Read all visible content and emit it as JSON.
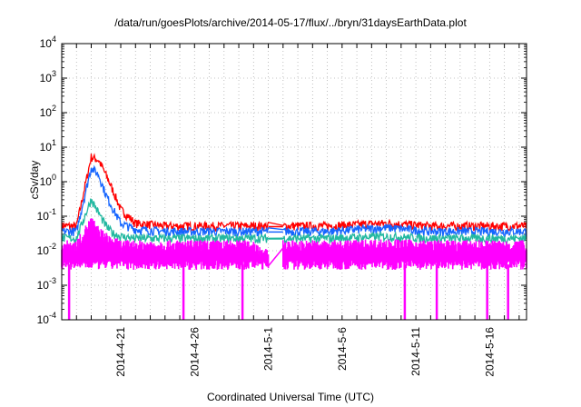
{
  "chart_data": {
    "type": "line",
    "title": "/data/run/goesPlots/archive/2014-05-17/flux/../bryn/31daysEarthData.plot",
    "xlabel": "Coordinated Universal Time (UTC)",
    "ylabel": "cSv/day",
    "yscale": "log",
    "ylim": [
      0.0001,
      10000
    ],
    "yticks": [
      {
        "value": 0.0001,
        "base": "10",
        "exp": "-4"
      },
      {
        "value": 0.001,
        "base": "10",
        "exp": "-3"
      },
      {
        "value": 0.01,
        "base": "10",
        "exp": "-2"
      },
      {
        "value": 0.1,
        "base": "10",
        "exp": "-1"
      },
      {
        "value": 1,
        "base": "10",
        "exp": "0"
      },
      {
        "value": 10,
        "base": "10",
        "exp": "1"
      },
      {
        "value": 100,
        "base": "10",
        "exp": "2"
      },
      {
        "value": 1000,
        "base": "10",
        "exp": "3"
      },
      {
        "value": 10000,
        "base": "10",
        "exp": "4"
      }
    ],
    "xlim": [
      "2014-04-17",
      "2014-05-18T12:00"
    ],
    "xtick_labels": [
      {
        "date": "2014-04-21",
        "label": "2014-4-21"
      },
      {
        "date": "2014-04-26",
        "label": "2014-4-26"
      },
      {
        "date": "2014-05-01",
        "label": "2014-5-1"
      },
      {
        "date": "2014-05-06",
        "label": "2014-5-6"
      },
      {
        "date": "2014-05-11",
        "label": "2014-5-11"
      },
      {
        "date": "2014-05-16",
        "label": "2014-5-16"
      }
    ],
    "grid": true,
    "data_gap": [
      "2014-05-01",
      "2014-05-02"
    ],
    "series": [
      {
        "color": "#ff0000",
        "x": [
          "2014-04-17",
          "2014-04-18",
          "2014-04-19",
          "2014-04-19T12:00",
          "2014-04-20",
          "2014-04-20T12:00",
          "2014-04-21",
          "2014-04-22",
          "2014-04-24",
          "2014-04-27",
          "2014-04-30",
          "2014-05-01",
          "2014-05-02",
          "2014-05-05",
          "2014-05-09",
          "2014-05-12",
          "2014-05-15",
          "2014-05-18T12:00"
        ],
        "y": [
          0.05,
          0.05,
          5,
          4,
          1.5,
          0.5,
          0.15,
          0.06,
          0.05,
          0.05,
          0.05,
          0.05,
          0.05,
          0.05,
          0.06,
          0.05,
          0.05,
          0.05
        ]
      },
      {
        "color": "#1565ff",
        "x": [
          "2014-04-17",
          "2014-04-18",
          "2014-04-19",
          "2014-04-19T12:00",
          "2014-04-20",
          "2014-04-20T12:00",
          "2014-04-21",
          "2014-04-22",
          "2014-04-24",
          "2014-04-27",
          "2014-04-30",
          "2014-05-01",
          "2014-05-02",
          "2014-05-05",
          "2014-05-09",
          "2014-05-12",
          "2014-05-15",
          "2014-05-18T12:00"
        ],
        "y": [
          0.035,
          0.035,
          2.5,
          1.5,
          0.4,
          0.15,
          0.06,
          0.04,
          0.035,
          0.035,
          0.035,
          0.035,
          0.035,
          0.035,
          0.045,
          0.035,
          0.035,
          0.035
        ]
      },
      {
        "color": "#22b8a0",
        "x": [
          "2014-04-17",
          "2014-04-18",
          "2014-04-19",
          "2014-04-19T12:00",
          "2014-04-20",
          "2014-04-20T12:00",
          "2014-04-21",
          "2014-04-22",
          "2014-04-24",
          "2014-04-27",
          "2014-04-30",
          "2014-05-01",
          "2014-05-02",
          "2014-05-05",
          "2014-05-09",
          "2014-05-12",
          "2014-05-15",
          "2014-05-18T12:00"
        ],
        "y": [
          0.022,
          0.022,
          0.3,
          0.12,
          0.05,
          0.03,
          0.025,
          0.022,
          0.022,
          0.022,
          0.022,
          0.022,
          0.022,
          0.022,
          0.025,
          0.022,
          0.022,
          0.022
        ]
      },
      {
        "color": "#ff00ff",
        "x": [
          "2014-04-17",
          "2014-04-18",
          "2014-04-19",
          "2014-04-19T12:00",
          "2014-04-20",
          "2014-04-20T12:00",
          "2014-04-21",
          "2014-04-22",
          "2014-04-24",
          "2014-04-27",
          "2014-04-30",
          "2014-05-01",
          "2014-05-02",
          "2014-05-05",
          "2014-05-09",
          "2014-05-12",
          "2014-05-15",
          "2014-05-18T12:00"
        ],
        "y": [
          0.012,
          0.012,
          0.06,
          0.03,
          0.02,
          0.015,
          0.012,
          0.012,
          0.012,
          0.012,
          0.012,
          0.006,
          0.012,
          0.012,
          0.013,
          0.012,
          0.012,
          0.012
        ],
        "y_low": 0.004,
        "dropouts": [
          "2014-04-17T12:00",
          "2014-04-25T06:00",
          "2014-04-29T06:00",
          "2014-05-10T06:00",
          "2014-05-12T10:00",
          "2014-05-15T20:00",
          "2014-05-17T06:00"
        ],
        "dropout_floor": 0.0001
      }
    ]
  }
}
